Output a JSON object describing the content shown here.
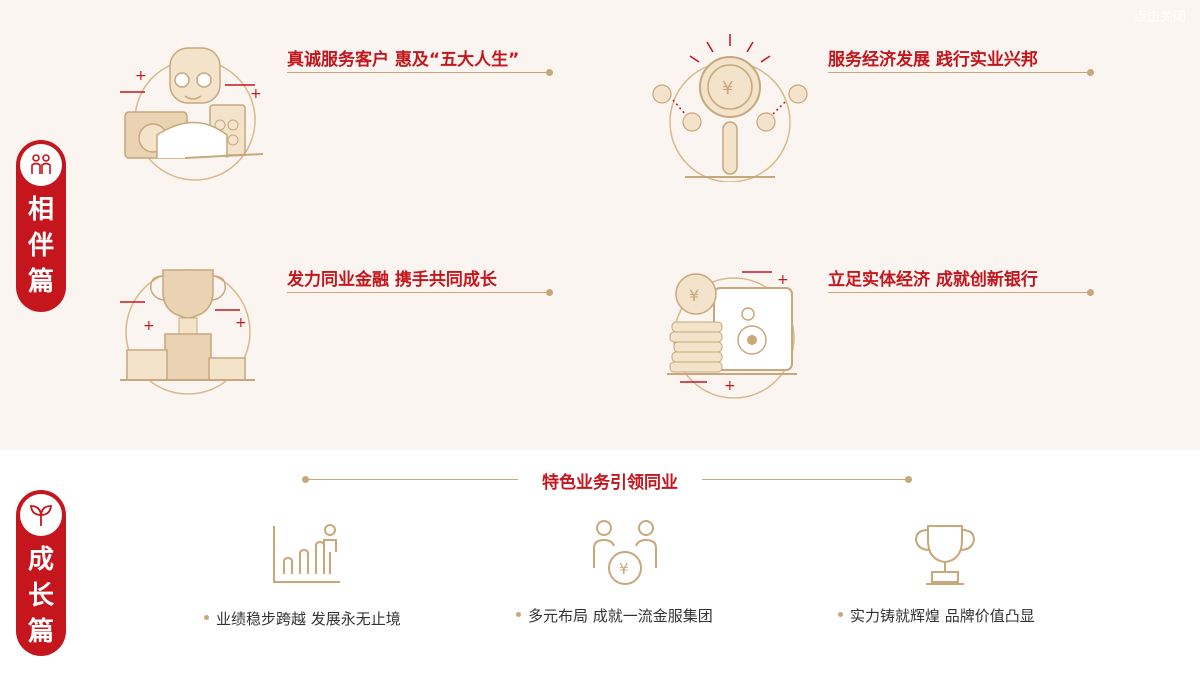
{
  "close_label": "点击关闭",
  "tabs": {
    "partner": "相伴篇",
    "growth": "成长篇"
  },
  "features": [
    {
      "title": "真诚服务客户 惠及“五大人生”",
      "icon": "service-person-icon"
    },
    {
      "title": "服务经济发展 践行实业兴邦",
      "icon": "coin-magnifier-icon"
    },
    {
      "title": "发力同业金融 携手共同成长",
      "icon": "trophy-podium-icon"
    },
    {
      "title": "立足实体经济 成就创新银行",
      "icon": "safe-coins-icon"
    }
  ],
  "growth": {
    "heading": "特色业务引领同业",
    "items": [
      {
        "label": "业绩稳步跨越  发展永无止境",
        "icon": "growth-chart-icon"
      },
      {
        "label": "多元布局 成就一流金服集团",
        "icon": "people-coin-icon"
      },
      {
        "label": "实力铸就辉煌 品牌价值凸显",
        "icon": "trophy-icon"
      }
    ]
  },
  "colors": {
    "brand_red": "#c4161c",
    "gold": "#c8a77a",
    "top_background": "#fbf5f2"
  }
}
